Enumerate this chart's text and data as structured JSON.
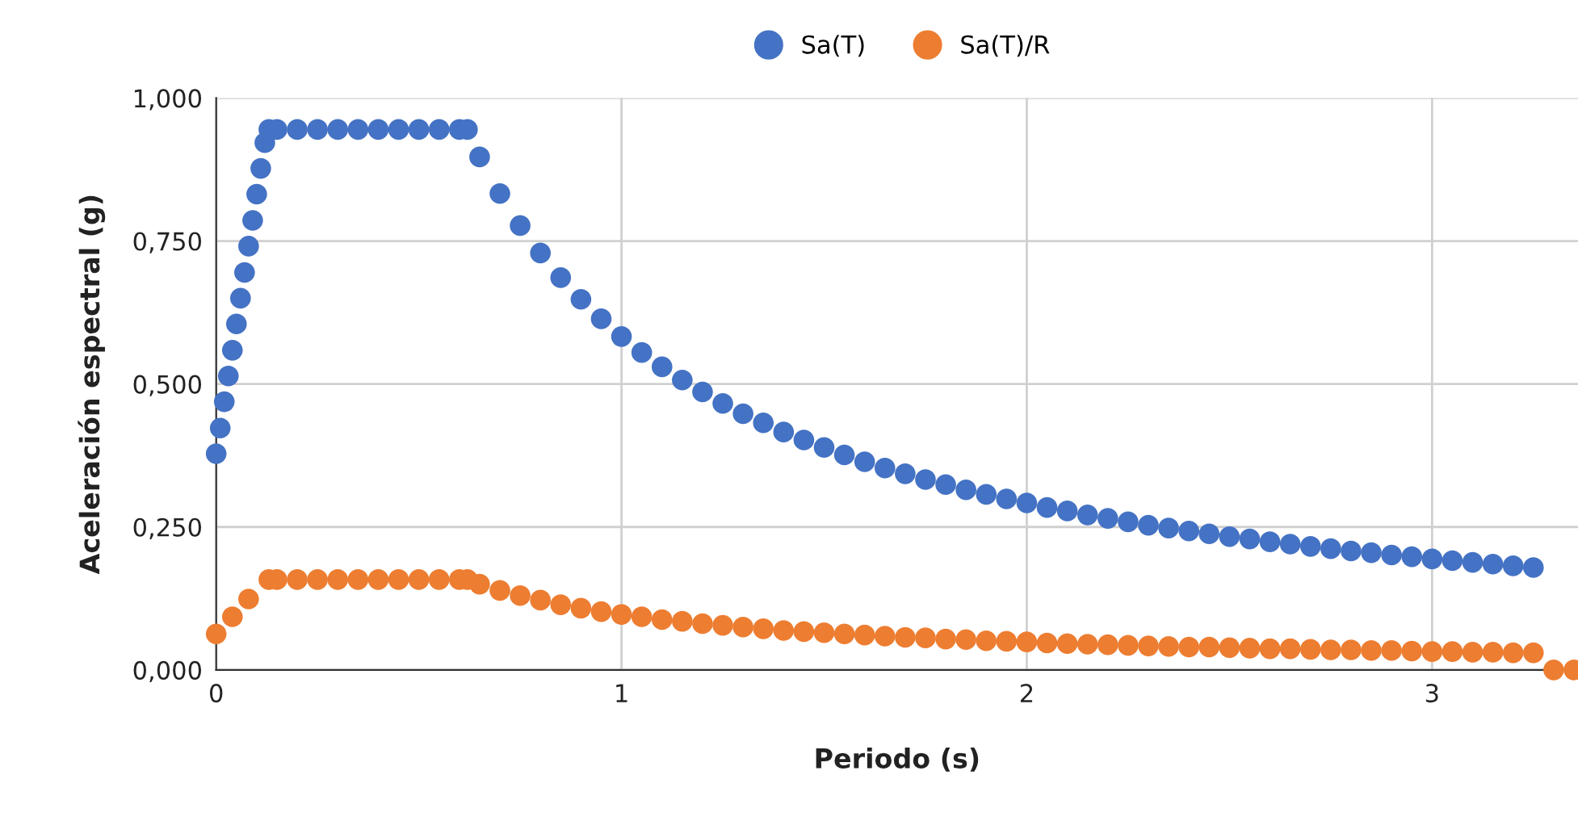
{
  "chart_data": {
    "type": "scatter",
    "xlabel": "Periodo (s)",
    "ylabel": "Aceleración espectral (g)",
    "xlim": [
      0,
      3.36
    ],
    "xticks": [
      0,
      1,
      2,
      3
    ],
    "ylim": [
      0,
      1
    ],
    "yticks": [
      {
        "value": 0,
        "label": "0,000"
      },
      {
        "value": 0.25,
        "label": "0,250"
      },
      {
        "value": 0.5,
        "label": "0,500"
      },
      {
        "value": 0.75,
        "label": "0,750"
      },
      {
        "value": 1,
        "label": "1,000"
      }
    ],
    "grid": true,
    "legend": "top",
    "marker": "circle",
    "series": [
      {
        "name": "Sa(T)",
        "color": "#4472c4",
        "x": [
          0,
          0.01,
          0.02,
          0.03,
          0.04,
          0.05,
          0.06,
          0.07,
          0.08,
          0.09,
          0.1,
          0.11,
          0.12,
          0.13,
          0.15,
          0.2,
          0.25,
          0.3,
          0.35,
          0.4,
          0.45,
          0.5,
          0.55,
          0.6,
          0.62,
          0.65,
          0.7,
          0.75,
          0.8,
          0.85,
          0.9,
          0.95,
          1.0,
          1.05,
          1.1,
          1.15,
          1.2,
          1.25,
          1.3,
          1.35,
          1.4,
          1.45,
          1.5,
          1.55,
          1.6,
          1.65,
          1.7,
          1.75,
          1.8,
          1.85,
          1.9,
          1.95,
          2.0,
          2.05,
          2.1,
          2.15,
          2.2,
          2.25,
          2.3,
          2.35,
          2.4,
          2.45,
          2.5,
          2.55,
          2.6,
          2.65,
          2.7,
          2.75,
          2.8,
          2.85,
          2.9,
          2.95,
          3.0,
          3.05,
          3.1,
          3.15,
          3.2,
          3.25
        ],
        "values": [
          0.378,
          0.423,
          0.469,
          0.514,
          0.559,
          0.605,
          0.65,
          0.695,
          0.741,
          0.786,
          0.832,
          0.877,
          0.922,
          0.945,
          0.945,
          0.945,
          0.945,
          0.945,
          0.945,
          0.945,
          0.945,
          0.945,
          0.945,
          0.945,
          0.945,
          0.897,
          0.833,
          0.777,
          0.729,
          0.686,
          0.648,
          0.614,
          0.583,
          0.555,
          0.53,
          0.507,
          0.486,
          0.466,
          0.448,
          0.432,
          0.416,
          0.402,
          0.389,
          0.376,
          0.364,
          0.353,
          0.343,
          0.333,
          0.324,
          0.315,
          0.307,
          0.299,
          0.292,
          0.284,
          0.278,
          0.271,
          0.265,
          0.259,
          0.253,
          0.248,
          0.243,
          0.238,
          0.233,
          0.229,
          0.224,
          0.22,
          0.216,
          0.212,
          0.208,
          0.205,
          0.201,
          0.198,
          0.194,
          0.191,
          0.188,
          0.185,
          0.182,
          0.179
        ]
      },
      {
        "name": "Sa(T)/R",
        "color": "#ed7d31",
        "x": [
          0,
          0.04,
          0.08,
          0.13,
          0.15,
          0.2,
          0.25,
          0.3,
          0.35,
          0.4,
          0.45,
          0.5,
          0.55,
          0.6,
          0.62,
          0.65,
          0.7,
          0.75,
          0.8,
          0.85,
          0.9,
          0.95,
          1.0,
          1.05,
          1.1,
          1.15,
          1.2,
          1.25,
          1.3,
          1.35,
          1.4,
          1.45,
          1.5,
          1.55,
          1.6,
          1.65,
          1.7,
          1.75,
          1.8,
          1.85,
          1.9,
          1.95,
          2.0,
          2.05,
          2.1,
          2.15,
          2.2,
          2.25,
          2.3,
          2.35,
          2.4,
          2.45,
          2.5,
          2.55,
          2.6,
          2.65,
          2.7,
          2.75,
          2.8,
          2.85,
          2.9,
          2.95,
          3.0,
          3.05,
          3.1,
          3.15,
          3.2,
          3.25,
          3.3,
          3.35
        ],
        "values": [
          0.063,
          0.093,
          0.124,
          0.158,
          0.158,
          0.158,
          0.158,
          0.158,
          0.158,
          0.158,
          0.158,
          0.158,
          0.158,
          0.158,
          0.158,
          0.15,
          0.139,
          0.13,
          0.122,
          0.114,
          0.108,
          0.102,
          0.097,
          0.093,
          0.088,
          0.085,
          0.081,
          0.078,
          0.075,
          0.072,
          0.069,
          0.067,
          0.065,
          0.063,
          0.061,
          0.059,
          0.057,
          0.056,
          0.054,
          0.053,
          0.051,
          0.05,
          0.049,
          0.047,
          0.046,
          0.045,
          0.044,
          0.043,
          0.042,
          0.041,
          0.04,
          0.04,
          0.039,
          0.038,
          0.037,
          0.037,
          0.036,
          0.035,
          0.035,
          0.034,
          0.034,
          0.033,
          0.032,
          0.032,
          0.031,
          0.031,
          0.03,
          0.03,
          0,
          0
        ]
      }
    ]
  }
}
